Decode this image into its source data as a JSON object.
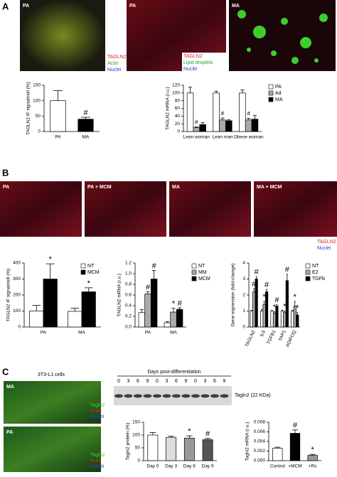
{
  "panel_labels": [
    "A",
    "B",
    "C"
  ],
  "images_a": {
    "labels": [
      "PA",
      "PA",
      "MA"
    ],
    "legend_first": [
      "TAGLN2",
      "Actin",
      "Nuclei"
    ],
    "legend_last": [
      "TAGLN2",
      "Lipid droplets",
      "Nuclei"
    ]
  },
  "images_b": {
    "labels": [
      "PA",
      "PA + MCM",
      "MA",
      "MA + MCM"
    ],
    "legend": [
      "TAGLN2",
      "Nuclei"
    ]
  },
  "images_c": {
    "title": "3T3-L1 cells",
    "labels": [
      "MA",
      "PA"
    ],
    "legend": [
      "Tagln2",
      "Actin",
      "Nuclei"
    ]
  },
  "blot": {
    "title": "Days post-differentiation",
    "lanes": [
      "0",
      "3",
      "6",
      "9",
      "0",
      "3",
      "6",
      "9",
      "0",
      "3",
      "6",
      "9"
    ],
    "band_label": "Tagln2 (22 KDa)"
  },
  "chart_data": [
    {
      "type": "bar",
      "ylabel": "TAGLN2 IF signal/cell (%)",
      "categories": [
        "PA",
        "MA"
      ],
      "values": [
        100,
        40
      ],
      "errors": [
        33,
        6
      ],
      "colors": [
        "#ffffff",
        "#000000"
      ],
      "annotations": [
        null,
        "#"
      ],
      "ylim": [
        0,
        150
      ],
      "yticks": [
        0,
        50,
        100,
        150
      ]
    },
    {
      "type": "bar",
      "ylabel": "TAGLN2 mRNA (r.u.)",
      "categories": [
        "Lean woman",
        "Lean man",
        "Obese woman"
      ],
      "series": [
        {
          "name": "PA",
          "color": "#ffffff",
          "values": [
            100,
            100,
            100
          ],
          "errors": [
            15,
            5,
            8
          ]
        },
        {
          "name": "Ad",
          "color": "#aaaaaa",
          "values": [
            10,
            30,
            30
          ],
          "errors": [
            2,
            5,
            4
          ],
          "annotations": [
            "#",
            "#",
            "#"
          ]
        },
        {
          "name": "MA",
          "color": "#000000",
          "values": [
            18,
            28,
            32
          ],
          "errors": [
            5,
            3,
            10
          ]
        }
      ],
      "ylim": [
        0,
        120
      ],
      "yticks": [
        0,
        20,
        40,
        60,
        80,
        100,
        120
      ]
    },
    {
      "type": "bar",
      "ylabel": "TAGLN2 IF signal/cell (%)",
      "categories": [
        "PA",
        "MA"
      ],
      "series": [
        {
          "name": "NT",
          "color": "#ffffff",
          "values": [
            100,
            98
          ],
          "errors": [
            35,
            20
          ]
        },
        {
          "name": "MCM",
          "color": "#000000",
          "values": [
            300,
            220
          ],
          "errors": [
            95,
            25
          ],
          "annotations": [
            "*",
            "*"
          ]
        }
      ],
      "ylim": [
        0,
        400
      ],
      "yticks": [
        0,
        100,
        200,
        300,
        400
      ]
    },
    {
      "type": "bar",
      "ylabel": "TAGLN2 mRNA (r.u.)",
      "categories": [
        "PA",
        "MA"
      ],
      "series": [
        {
          "name": "NT",
          "color": "#ffffff",
          "values": [
            0.27,
            0.08
          ],
          "errors": [
            0.06,
            0.02
          ]
        },
        {
          "name": "MM",
          "color": "#aaaaaa",
          "values": [
            0.62,
            0.28
          ],
          "errors": [
            0.04,
            0.07
          ],
          "annotations": [
            "#",
            "*"
          ]
        },
        {
          "name": "MCM",
          "color": "#000000",
          "values": [
            0.9,
            0.33
          ],
          "errors": [
            0.16,
            0.03
          ],
          "annotations": [
            "#",
            "#"
          ]
        }
      ],
      "ylim": [
        0,
        1.2
      ],
      "yticks": [
        {
          "value": 0,
          "label": "0.0"
        },
        {
          "value": 0.2,
          "label": "0.2"
        },
        {
          "value": 0.4,
          "label": "0.4"
        },
        {
          "value": 0.6,
          "label": "0.6"
        },
        {
          "value": 0.8,
          "label": "0.8"
        },
        {
          "value": 1,
          "label": "1.0"
        },
        {
          "value": 1.2,
          "label": "1.2"
        }
      ]
    },
    {
      "type": "bar",
      "ylabel": "Gene expression (fold-change)",
      "categories": [
        "TAGLN2",
        "IL6",
        "TGFB1",
        "YAP1",
        "ADIPOQ"
      ],
      "series": [
        {
          "name": "NT",
          "color": "#ffffff",
          "values": [
            1,
            1,
            1,
            1,
            1
          ],
          "errors": [
            0.05,
            0.1,
            0.05,
            0.05,
            0.05
          ]
        },
        {
          "name": "E2",
          "color": "#aaaaaa",
          "values": [
            2.2,
            1.4,
            0.85,
            0.9,
            1.3
          ],
          "errors": [
            0.2,
            0.2,
            0.1,
            0.1,
            0.3
          ],
          "annotations": [
            "#",
            "*",
            "*",
            "*",
            "*"
          ]
        },
        {
          "name": "TGFb",
          "color": "#000000",
          "values": [
            3.0,
            2.2,
            1.3,
            2.9,
            0.75
          ],
          "errors": [
            0.15,
            0.15,
            0.1,
            0.4,
            0.15
          ],
          "annotations": [
            "#",
            "#",
            "#",
            "#",
            "*"
          ]
        }
      ],
      "ylim": [
        0,
        4
      ],
      "yticks": [
        0,
        1,
        2,
        3,
        4
      ]
    },
    {
      "type": "bar",
      "ylabel": "Tagln2 protein (%)",
      "categories": [
        "Day 0",
        "Day 3",
        "Day 6",
        "Day 9"
      ],
      "values": [
        100,
        91,
        88,
        82
      ],
      "errors": [
        10,
        5,
        9,
        5
      ],
      "colors": [
        "#ffffff",
        "#dddddd",
        "#999999",
        "#555555"
      ],
      "annotations": [
        null,
        null,
        "*",
        "#"
      ],
      "ylim": [
        0,
        150
      ],
      "yticks": [
        0,
        50,
        100,
        150
      ]
    },
    {
      "type": "bar",
      "ylabel": "Tagln2 mRNA (r.u.)",
      "categories": [
        "Control",
        "+MCM",
        "+Rs"
      ],
      "values": [
        0.0026,
        0.0057,
        0.0011
      ],
      "errors": [
        0.0002,
        0.0007,
        0.0002
      ],
      "colors": [
        "#ffffff",
        "#000000",
        "#999999"
      ],
      "annotations": [
        null,
        "#",
        "*"
      ],
      "ylim": [
        0,
        0.008
      ],
      "yticks": [
        {
          "value": 0,
          "label": "0.000"
        },
        {
          "value": 0.002,
          "label": "0.002"
        },
        {
          "value": 0.004,
          "label": "0.004"
        },
        {
          "value": 0.006,
          "label": "0.006"
        },
        {
          "value": 0.008,
          "label": "0.008"
        }
      ]
    }
  ]
}
